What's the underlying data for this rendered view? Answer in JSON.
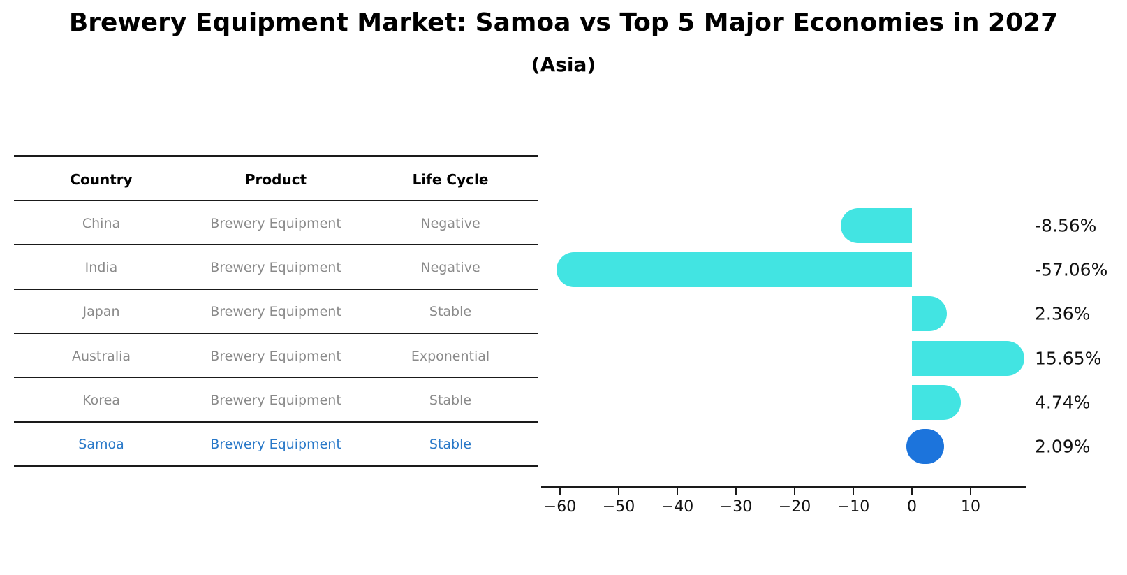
{
  "title": "Brewery Equipment Market: Samoa vs Top 5 Major Economies in 2027",
  "subtitle": "(Asia)",
  "table": {
    "headers": [
      "Country",
      "Product",
      "Life Cycle"
    ],
    "rows": [
      {
        "country": "China",
        "product": "Brewery Equipment",
        "life_cycle": "Negative",
        "highlight": false
      },
      {
        "country": "India",
        "product": "Brewery Equipment",
        "life_cycle": "Negative",
        "highlight": false
      },
      {
        "country": "Japan",
        "product": "Brewery Equipment",
        "life_cycle": "Stable",
        "highlight": false
      },
      {
        "country": "Australia",
        "product": "Brewery Equipment",
        "life_cycle": "Exponential",
        "highlight": false
      },
      {
        "country": "Korea",
        "product": "Brewery Equipment",
        "life_cycle": "Stable",
        "highlight": false
      },
      {
        "country": "Samoa",
        "product": "Brewery Equipment",
        "life_cycle": "Stable",
        "highlight": true
      }
    ]
  },
  "chart_data": {
    "type": "bar",
    "orientation": "horizontal",
    "title": "Brewery Equipment Market: Samoa vs Top 5 Major Economies in 2027 (Asia)",
    "categories": [
      "China",
      "India",
      "Japan",
      "Australia",
      "Korea",
      "Samoa"
    ],
    "values": [
      -8.56,
      -57.06,
      2.36,
      15.65,
      4.74,
      2.09
    ],
    "value_labels": [
      "-8.56%",
      "-57.06%",
      "2.36%",
      "15.65%",
      "4.74%",
      "2.09%"
    ],
    "x_ticks": [
      -60,
      -50,
      -40,
      -30,
      -20,
      -10,
      0,
      10
    ],
    "x_tick_labels": [
      "−60",
      "−50",
      "−40",
      "−30",
      "−20",
      "−10",
      "0",
      "10"
    ],
    "xlim": [
      -63.2,
      19.5
    ],
    "grid": false,
    "legend": null,
    "bar_color": "#42E4E2",
    "highlight_color": "#1C74DC",
    "highlight_index": 5
  },
  "colors": {
    "bar_cyan": "#42E4E2",
    "bar_blue": "#1C74DC",
    "row_text_gray": "#8a8a8a",
    "highlight_text_blue": "#2878C8",
    "line_black": "#1a1a1a"
  }
}
